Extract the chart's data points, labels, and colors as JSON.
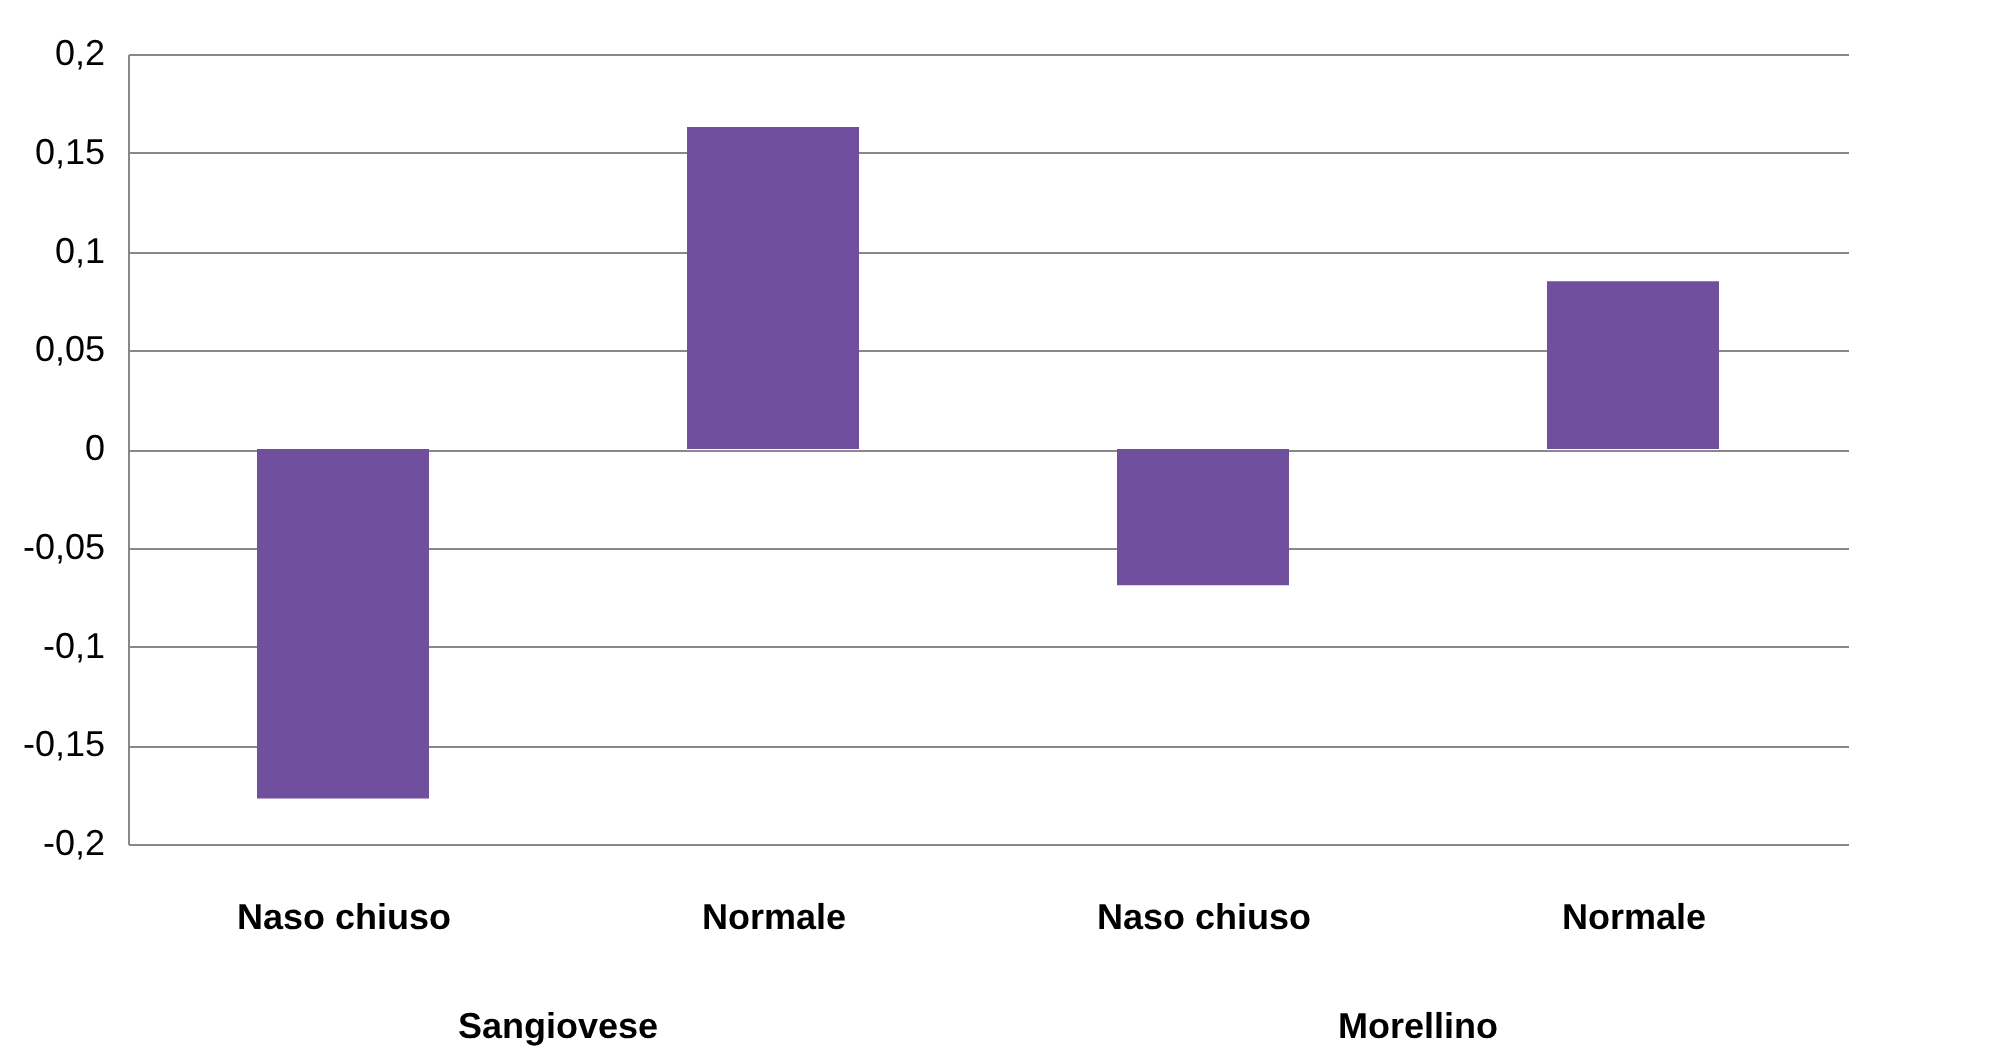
{
  "chart_data": {
    "type": "bar",
    "categories": [
      "Naso chiuso",
      "Normale",
      "Naso chiuso",
      "Normale"
    ],
    "values": [
      -0.177,
      0.163,
      -0.069,
      0.085
    ],
    "color": "#6f4f9e",
    "ylim": [
      -0.2,
      0.2
    ],
    "yticks": [
      {
        "value": -0.2,
        "label": "-0,2"
      },
      {
        "value": -0.15,
        "label": "-0,15"
      },
      {
        "value": -0.1,
        "label": "-0,1"
      },
      {
        "value": -0.05,
        "label": "-0,05"
      },
      {
        "value": 0,
        "label": "0"
      },
      {
        "value": 0.05,
        "label": "0,05"
      },
      {
        "value": 0.1,
        "label": "0,1"
      },
      {
        "value": 0.15,
        "label": "0,15"
      },
      {
        "value": 0.2,
        "label": "0,2"
      }
    ],
    "grid": "y",
    "annotations": [
      "Sangiovese",
      "Morellino"
    ]
  }
}
